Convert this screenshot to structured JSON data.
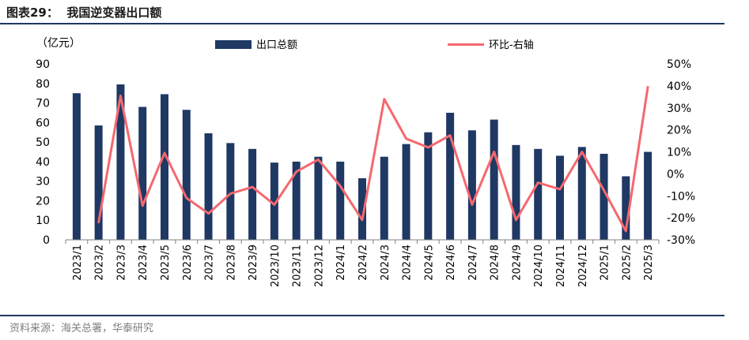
{
  "figure": {
    "title": "图表29：  我国逆变器出口额",
    "source": "资料来源：海关总署，华泰研究"
  },
  "chart_data": {
    "type": "bar",
    "categories": [
      "2023/1",
      "2023/2",
      "2023/3",
      "2023/4",
      "2023/5",
      "2023/6",
      "2023/7",
      "2023/8",
      "2023/9",
      "2023/10",
      "2023/11",
      "2023/12",
      "2024/1",
      "2024/2",
      "2024/3",
      "2024/4",
      "2024/5",
      "2024/6",
      "2024/7",
      "2024/8",
      "2024/9",
      "2024/10",
      "2024/11",
      "2024/12",
      "2025/1",
      "2025/2",
      "2025/3"
    ],
    "left_axis_unit": "（亿元）",
    "left_ticks": [
      "0",
      "10",
      "20",
      "30",
      "40",
      "50",
      "60",
      "70",
      "80",
      "90"
    ],
    "right_ticks": [
      "-30%",
      "-20%",
      "-10%",
      "0%",
      "10%",
      "20%",
      "30%",
      "40%",
      "50%"
    ],
    "ylim_left": [
      0,
      90
    ],
    "ylim_right": [
      -30,
      50
    ],
    "legend_position": "top",
    "grid": false,
    "series": [
      {
        "name": "出口总额",
        "kind": "bar",
        "axis": "left",
        "color": "#1f3864",
        "values": [
          75,
          58.5,
          79.5,
          68,
          74.5,
          66.5,
          54.5,
          49.5,
          46.5,
          39.5,
          40,
          42.5,
          40,
          31.5,
          42.5,
          49,
          55,
          65,
          56,
          61.5,
          48.5,
          46.5,
          43,
          47.5,
          44,
          32.5,
          45
        ]
      },
      {
        "name": "环比-右轴",
        "kind": "line",
        "axis": "right",
        "color": "#f4686e",
        "values": [
          null,
          -22,
          35.5,
          -14.5,
          9.5,
          -11,
          -18,
          -9,
          -6,
          -14,
          1,
          6.5,
          -5.5,
          -21,
          34,
          16,
          12,
          17.5,
          -14,
          10,
          -21,
          -4,
          -7,
          10,
          -7.5,
          -26,
          39.5
        ]
      }
    ]
  }
}
